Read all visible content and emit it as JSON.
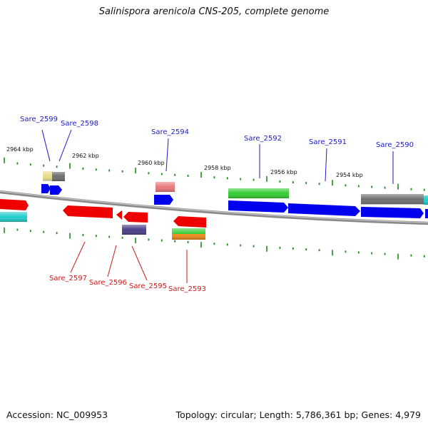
{
  "title": "Salinispora arenicola CNS-205, complete genome",
  "accession": "Accession: NC_009953",
  "summary": "Topology: circular; Length: 5,786,361 bp; Genes: 4,979",
  "colors": {
    "backbone": "#8a8a8a",
    "tick": "#1e8c1e",
    "forward_label": "#1a1acc",
    "reverse_label": "#cc1a1a"
  },
  "scale_labels": [
    "2964 kbp",
    "2962 kbp",
    "2960 kbp",
    "2958 kbp",
    "2956 kbp",
    "2954 kbp"
  ],
  "forward_gene_labels": [
    "Sare_2599",
    "Sare_2598",
    "Sare_2594",
    "Sare_2592",
    "Sare_2591",
    "Sare_2590"
  ],
  "reverse_gene_labels": [
    "Sare_2597",
    "Sare_2596",
    "Sare_2595",
    "Sare_2593"
  ],
  "feature_colors": {
    "blue": "#0000ee",
    "red": "#ee0000",
    "green": "#33cc33",
    "gray": "#6e6e6e",
    "cyan": "#22cccc",
    "khaki": "#e6dc8c",
    "salmon": "#e8787a",
    "slate": "#4a3f8a",
    "orange": "#f08c1e"
  }
}
